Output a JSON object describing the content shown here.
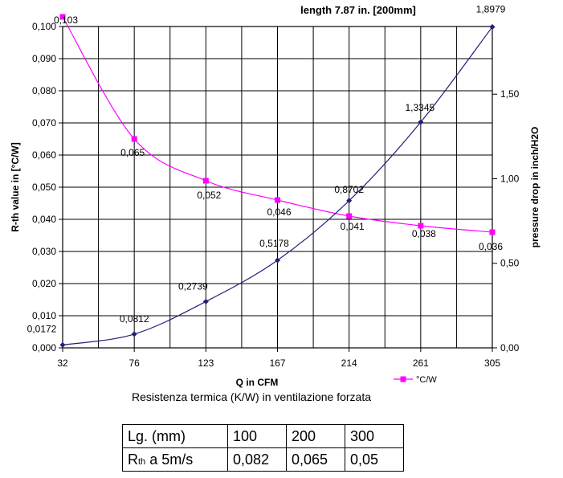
{
  "chart_data": {
    "type": "line",
    "title": "length 7.87 in. [200mm]",
    "xlabel": "Q in CFM",
    "ylabel_left": "R-th value in [°C/W]",
    "ylabel_right": "pressure drop in inch/H2O",
    "categories": [
      "32",
      "76",
      "123",
      "167",
      "214",
      "261",
      "305"
    ],
    "left_axis": {
      "range": [
        0,
        0.1
      ],
      "ticks": [
        "0,000",
        "0,010",
        "0,020",
        "0,030",
        "0,040",
        "0,050",
        "0,060",
        "0,070",
        "0,080",
        "0,090",
        "0,100"
      ]
    },
    "right_axis": {
      "range": [
        0,
        1.9
      ],
      "ticks": [
        {
          "value": 0,
          "label": "0,00"
        },
        {
          "value": 0.5,
          "label": "0,50"
        },
        {
          "value": 1.0,
          "label": "1,00"
        },
        {
          "value": 1.5,
          "label": "1,50"
        }
      ]
    },
    "series": [
      {
        "name": "°C/W",
        "axis": "left",
        "color": "#ff00ff",
        "marker": "square",
        "values": [
          0.103,
          0.065,
          0.052,
          0.046,
          0.041,
          0.038,
          0.036
        ],
        "labels": [
          "0,103",
          "0,065",
          "0,052",
          "0,046",
          "0,041",
          "0,038",
          "0,036"
        ]
      },
      {
        "name": "pressure drop in./H2O",
        "axis": "right",
        "color": "#1f1f7a",
        "marker": "diamond",
        "values": [
          0.0172,
          0.0812,
          0.2739,
          0.5178,
          0.8702,
          1.3345,
          1.8979
        ],
        "labels": [
          "0,0172",
          "0,0812",
          "0,2739",
          "0,5178",
          "0,8702",
          "1,3345",
          "1,8979"
        ]
      }
    ],
    "grid": true,
    "legend": "bottom-right"
  },
  "caption": "Resistenza termica (K/W) in ventilazione forzata",
  "table": {
    "header": "Lg. (mm)",
    "columns": [
      "100",
      "200",
      "300"
    ],
    "row_label_main": "R",
    "row_label_sub": "th",
    "row_label_rest": " a 5m/s",
    "values": [
      "0,082",
      "0,065",
      "0,05"
    ]
  }
}
